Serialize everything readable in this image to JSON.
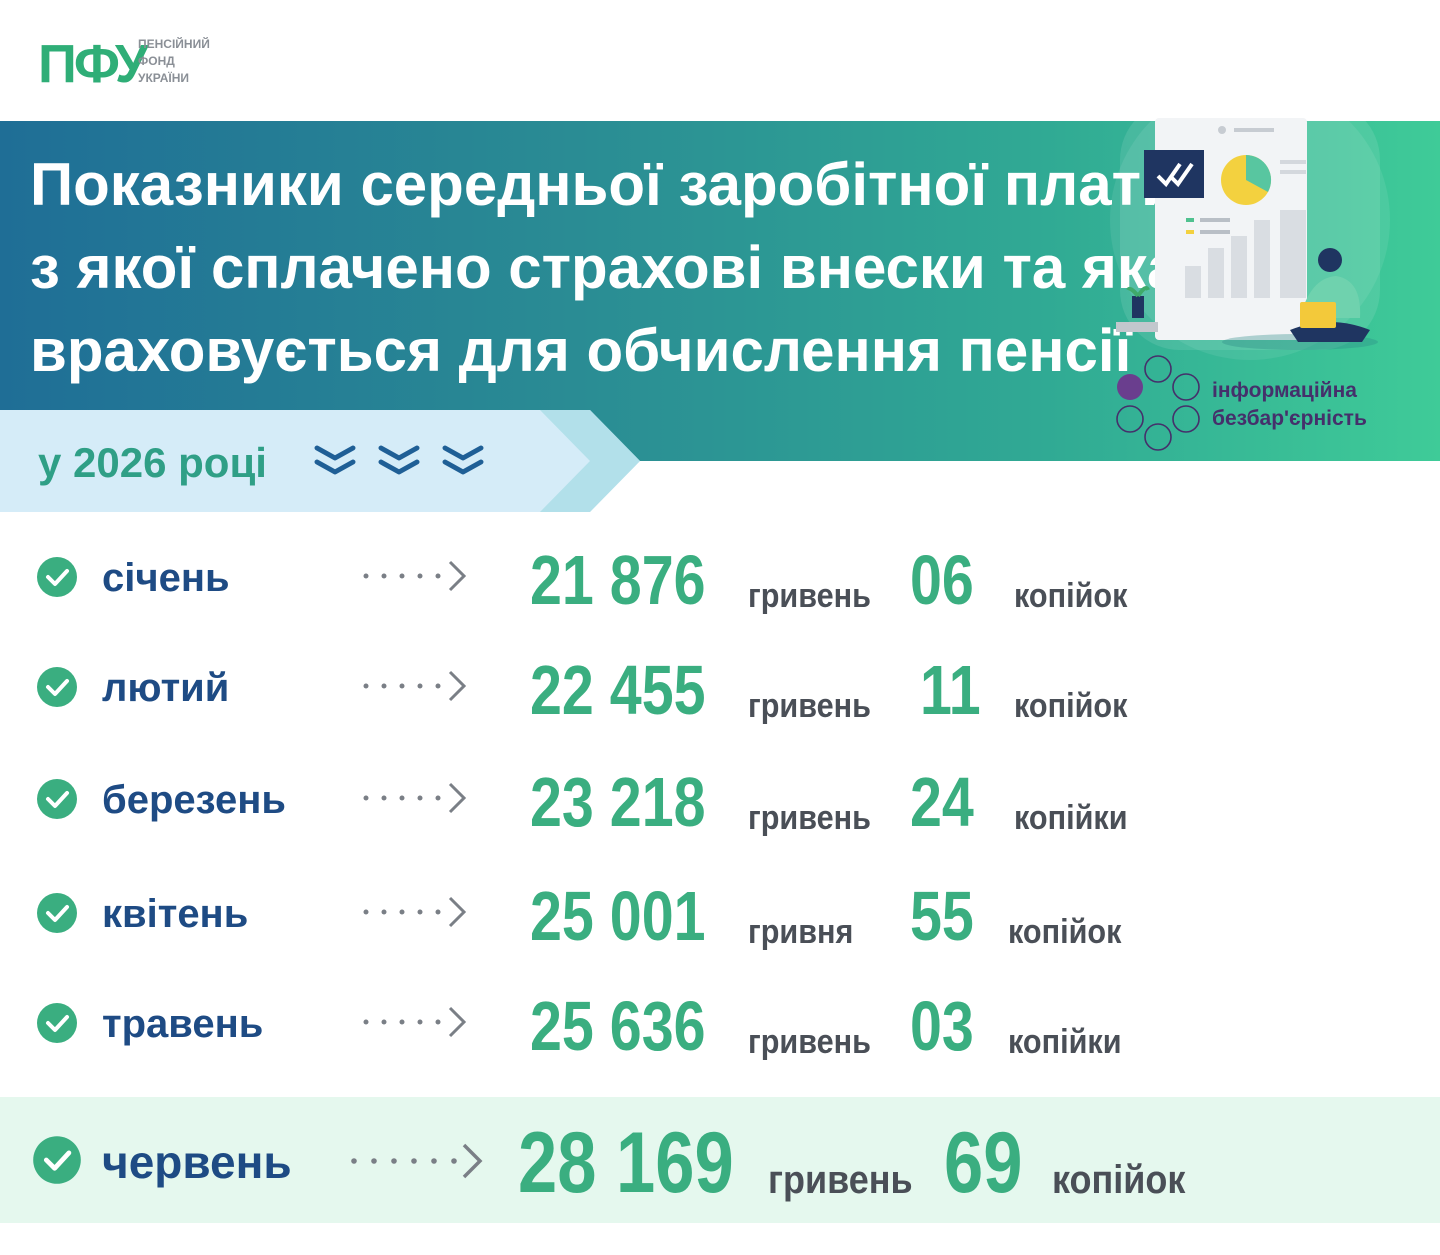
{
  "logo": {
    "mark": "ПФУ",
    "line1": "ПЕНСІЙНИЙ",
    "line2": "ФОНД",
    "line3": "УКРАЇНИ"
  },
  "title": {
    "line1": "Показники середньої заробітної плати,",
    "line2": "з якої сплачено страхові внески та яка",
    "line3": "враховується для обчислення пенсії"
  },
  "year_label": "у 2026 році",
  "brand": {
    "line1": "інформаційна",
    "line2": "безбар'єрність"
  },
  "rows": [
    {
      "month": "січень",
      "hryvnias": "21 876",
      "hryvnia_unit": "гривень",
      "kopecks": "06",
      "kopeck_unit": "копійок"
    },
    {
      "month": "лютий",
      "hryvnias": "22 455",
      "hryvnia_unit": "гривень",
      "kopecks": "11",
      "kopeck_unit": "копійок"
    },
    {
      "month": "березень",
      "hryvnias": "23 218",
      "hryvnia_unit": "гривень",
      "kopecks": "24",
      "kopeck_unit": "копійки"
    },
    {
      "month": "квітень",
      "hryvnias": "25 001",
      "hryvnia_unit": "гривня",
      "kopecks": "55",
      "kopeck_unit": "копійок"
    },
    {
      "month": "травень",
      "hryvnias": "25 636",
      "hryvnia_unit": "гривень",
      "kopecks": "03",
      "kopeck_unit": "копійки"
    },
    {
      "month": "червень",
      "hryvnias": "28 169",
      "hryvnia_unit": "гривень",
      "kopecks": "69",
      "kopeck_unit": "копійок"
    }
  ],
  "colors": {
    "accent_green": "#3aae80",
    "month_blue": "#1e4b84",
    "banner_start": "#1f6e96",
    "banner_end": "#3fcb98",
    "highlight_row": "#e5f8ee"
  }
}
